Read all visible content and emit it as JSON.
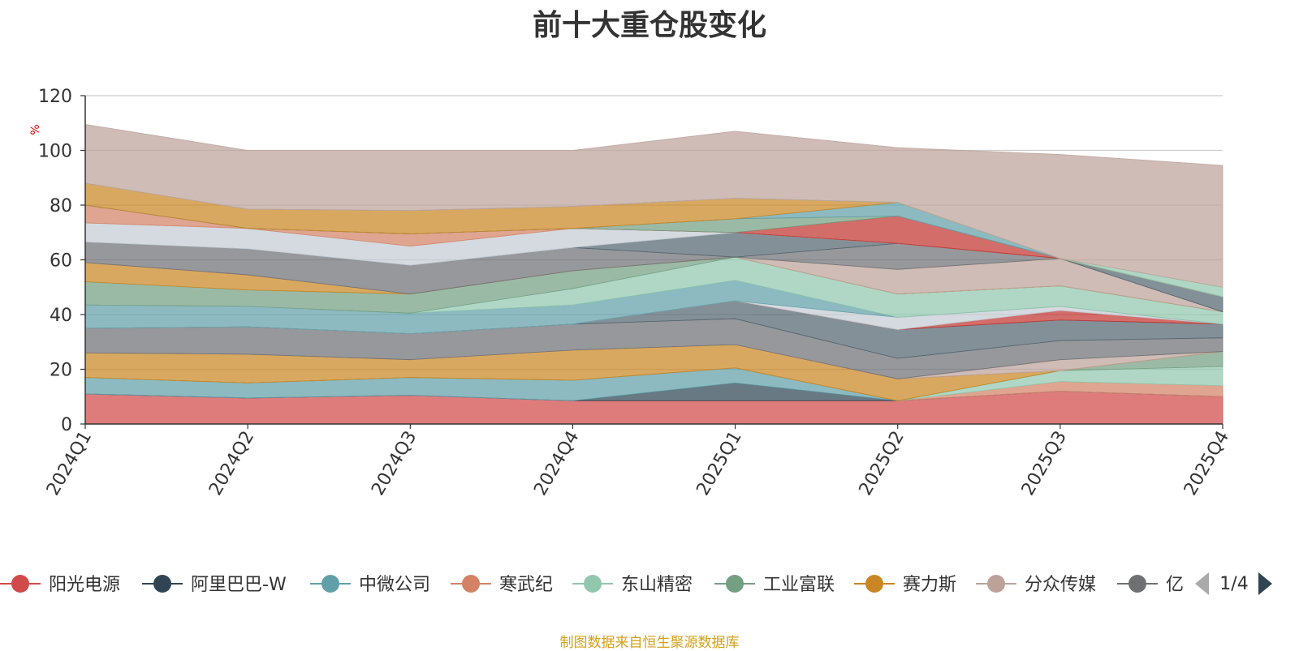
{
  "chart_data": {
    "type": "area",
    "title": "前十大重仓股变化",
    "ylabel": "%",
    "ylim": [
      0,
      120
    ],
    "yticks": [
      0,
      20,
      40,
      60,
      80,
      100,
      120
    ],
    "grid": true,
    "stacked": true,
    "categories": [
      "2024Q1",
      "2024Q2",
      "2024Q3",
      "2024Q4",
      "2025Q1",
      "2025Q2",
      "2025Q3",
      "2025Q4"
    ],
    "series": [
      {
        "name": "阳光电源",
        "color": "#d14a4a",
        "values": [
          11,
          9.5,
          10.5,
          8.5,
          8.5,
          8.5,
          12,
          10
        ]
      },
      {
        "name": "阿里巴巴-W",
        "color": "#2f4554",
        "values": [
          0,
          0,
          0,
          0,
          6.5,
          0,
          0,
          0
        ]
      },
      {
        "name": "中微公司",
        "color": "#61a0a8",
        "values": [
          6,
          5.5,
          6.5,
          7.5,
          5.5,
          0,
          0,
          0
        ]
      },
      {
        "name": "寒武纪",
        "color": "#d48265",
        "values": [
          0,
          0,
          0,
          0,
          0,
          0,
          3.5,
          4
        ]
      },
      {
        "name": "东山精密",
        "color": "#91c7ae",
        "values": [
          0,
          0,
          0,
          0,
          0,
          0,
          4,
          7
        ]
      },
      {
        "name": "工业富联",
        "color": "#749f83",
        "values": [
          0,
          0,
          0,
          0,
          0,
          0,
          0,
          5.5
        ]
      },
      {
        "name": "赛力斯",
        "color": "#ca8622",
        "values": [
          9,
          10.5,
          6.5,
          11,
          8.5,
          8,
          0,
          0
        ]
      },
      {
        "name": "分众传媒",
        "color": "#bda29a",
        "values": [
          0,
          0,
          0,
          0,
          0,
          0,
          4,
          0
        ]
      },
      {
        "name": "亿纬锂能",
        "color": "#6e7074",
        "values": [
          9,
          10,
          9.5,
          9.5,
          9.5,
          7.5,
          7,
          5
        ]
      },
      {
        "name": "",
        "color": "#546570",
        "values": [
          0,
          0,
          0,
          0,
          6.5,
          10.5,
          7.5,
          5
        ]
      },
      {
        "name": "",
        "color": "#c23531",
        "values": [
          0,
          0,
          0,
          0,
          0,
          0,
          3.5,
          0
        ]
      },
      {
        "name": "",
        "color": "#c4ccd3",
        "values": [
          0,
          0,
          0,
          0,
          0,
          4.5,
          1.5,
          0
        ]
      },
      {
        "name": "",
        "color": "#61a0a8",
        "values": [
          8.5,
          7.5,
          7.5,
          7,
          7.5,
          0,
          0,
          0
        ]
      },
      {
        "name": "",
        "color": "#91c7ae",
        "values": [
          0,
          0,
          0,
          6,
          8.5,
          8.5,
          7.5,
          4.5
        ]
      },
      {
        "name": "",
        "color": "#749f83",
        "values": [
          8.5,
          6,
          7,
          6.5,
          0,
          0,
          0,
          0
        ]
      },
      {
        "name": "",
        "color": "#ca8622",
        "values": [
          7,
          5.5,
          0,
          0,
          0,
          0,
          0,
          0
        ]
      },
      {
        "name": "",
        "color": "#bda29a",
        "values": [
          0,
          0,
          0,
          0,
          0,
          9,
          10,
          0
        ]
      },
      {
        "name": "",
        "color": "#6e7074",
        "values": [
          7.5,
          9.5,
          10.5,
          8.5,
          0,
          9.5,
          0,
          0
        ]
      },
      {
        "name": "",
        "color": "#546570",
        "values": [
          0,
          0,
          0,
          0,
          9,
          0,
          0,
          5.5
        ]
      },
      {
        "name": "",
        "color": "#c4ccd3",
        "values": [
          7,
          7.5,
          7,
          7,
          0,
          0,
          0,
          0
        ]
      },
      {
        "name": "",
        "color": "#d48265",
        "values": [
          6.5,
          0,
          4.5,
          0,
          0,
          0,
          0,
          0
        ]
      },
      {
        "name": "",
        "color": "#c23531",
        "values": [
          0,
          0,
          0,
          0,
          0,
          10,
          0,
          0
        ]
      },
      {
        "name": "",
        "color": "#749f83",
        "values": [
          0,
          0,
          0,
          0,
          5,
          0,
          0,
          0
        ]
      },
      {
        "name": "",
        "color": "#61a0a8",
        "values": [
          0,
          0,
          0,
          0,
          0,
          5,
          0,
          0
        ]
      },
      {
        "name": "",
        "color": "#ca8622",
        "values": [
          8,
          7,
          8.5,
          8,
          7.5,
          0,
          0,
          0
        ]
      },
      {
        "name": "",
        "color": "#91c7ae",
        "values": [
          0,
          0,
          0,
          0,
          0,
          0,
          0,
          3.5
        ]
      },
      {
        "name": "",
        "color": "#bda29a",
        "values": [
          21.5,
          21.5,
          22,
          20.5,
          24.5,
          20,
          38,
          44.5
        ]
      }
    ],
    "legend_visible": [
      "阳光电源",
      "阿里巴巴-W",
      "中微公司",
      "寒武纪",
      "东山精密",
      "工业富联",
      "赛力斯",
      "分众传媒",
      "亿"
    ],
    "legend_position": "bottom",
    "legend_page": "1/4"
  },
  "footer": {
    "source_text": "制图数据来自恒生聚源数据库"
  }
}
